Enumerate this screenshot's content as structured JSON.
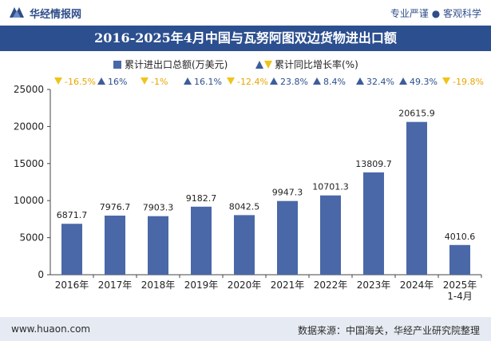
{
  "header": {
    "brand": "华经情报网",
    "slogan": "专业严谨 ● 客观科学"
  },
  "footer": {
    "url": "www.huaon.com",
    "source": "数据来源：中国海关，华经产业研究院整理"
  },
  "colors": {
    "bar": "#4a68a8",
    "title_bg": "#2c4f8f",
    "up": "#3d5d9a",
    "down": "#f0c419",
    "neg_text": "#e8a500",
    "pos_text": "#2c4f8f"
  },
  "chart_data": {
    "type": "bar",
    "title": "2016-2025年4月中国与瓦努阿图双边货物进出口额",
    "legend": {
      "bar_label": "累计进出口总额(万美元)",
      "growth_label": "累计同比增长率(%)",
      "placement": "top"
    },
    "categories": [
      "2016年",
      "2017年",
      "2018年",
      "2019年",
      "2020年",
      "2021年",
      "2022年",
      "2023年",
      "2024年",
      "2025年\n1-4月"
    ],
    "series": [
      {
        "name": "累计进出口总额(万美元)",
        "values": [
          6871.7,
          7976.7,
          7903.3,
          9182.7,
          8042.5,
          9947.3,
          10701.3,
          13809.7,
          20615.9,
          4010.6
        ]
      },
      {
        "name": "累计同比增长率(%)",
        "values": [
          -16.5,
          16,
          -1,
          16.1,
          -12.4,
          23.8,
          8.4,
          32.4,
          49.3,
          -19.8
        ],
        "labels": [
          "-16.5%",
          "16%",
          "-1%",
          "16.1%",
          "-12.4%",
          "23.8%",
          "8.4%",
          "32.4%",
          "49.3%",
          "-19.8%"
        ]
      }
    ],
    "ylim": [
      0,
      25000
    ],
    "yticks": [
      0,
      5000,
      10000,
      15000,
      20000,
      25000
    ],
    "grid": false
  }
}
